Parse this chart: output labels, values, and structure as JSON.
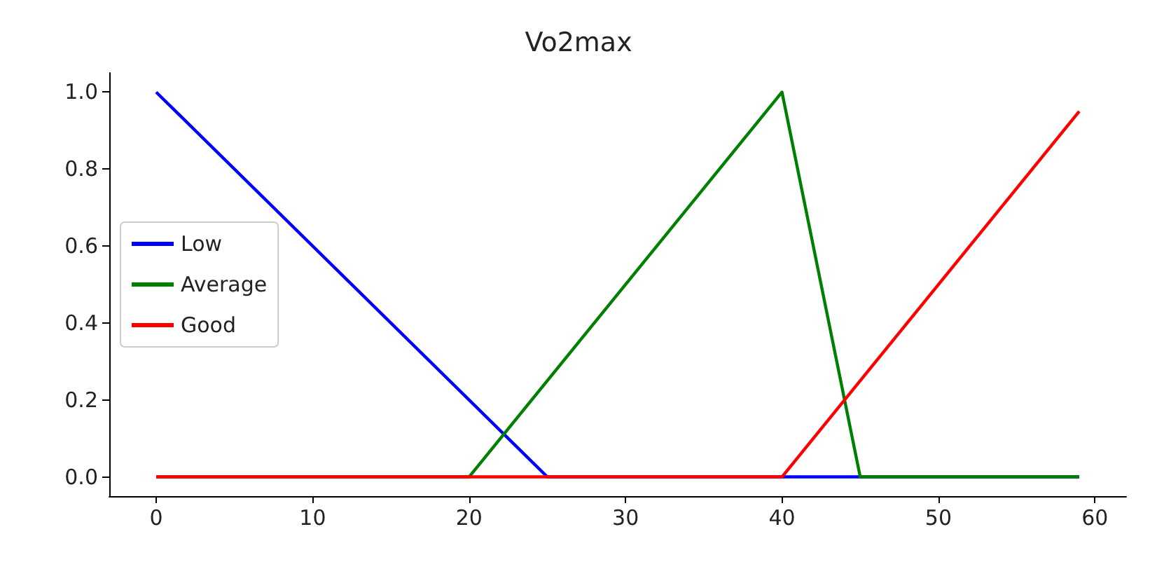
{
  "chart_data": {
    "type": "line",
    "title": "Vo2max",
    "series": [
      {
        "name": "Low",
        "color": "#0000ff",
        "x": [
          0,
          25,
          59
        ],
        "values": [
          1,
          0,
          0
        ]
      },
      {
        "name": "Average",
        "color": "#008000",
        "x": [
          0,
          20,
          40,
          45,
          59
        ],
        "values": [
          0,
          0,
          1,
          0,
          0
        ]
      },
      {
        "name": "Good",
        "color": "#ff0000",
        "x": [
          0,
          40,
          59
        ],
        "values": [
          0,
          0,
          0.95
        ]
      }
    ],
    "xlim": [
      -3,
      62
    ],
    "ylim": [
      -0.05,
      1.05
    ],
    "xticks": [
      0,
      10,
      20,
      30,
      40,
      50,
      60
    ],
    "yticks": [
      {
        "value": 0,
        "label": "0.0"
      },
      {
        "value": 0.2,
        "label": "0.2"
      },
      {
        "value": 0.4,
        "label": "0.4"
      },
      {
        "value": 0.6,
        "label": "0.6"
      },
      {
        "value": 0.8,
        "label": "0.8"
      },
      {
        "value": 1,
        "label": "1.0"
      }
    ],
    "grid": false,
    "legend": "center left",
    "marker": "none",
    "line_style": "solid"
  }
}
